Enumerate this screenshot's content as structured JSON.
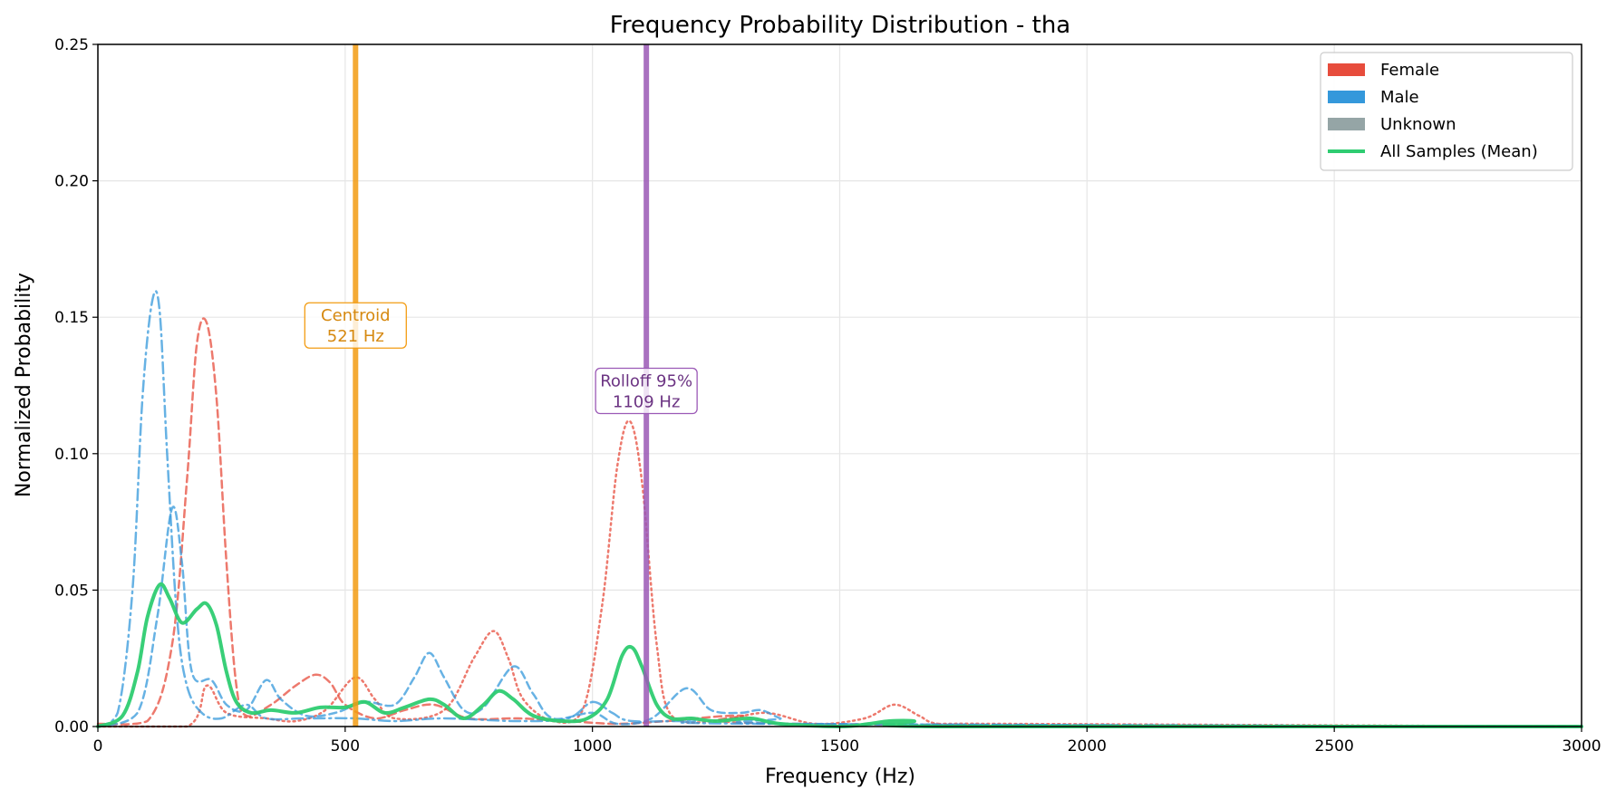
{
  "chart_data": {
    "type": "line",
    "title": "Frequency Probability Distribution - tha",
    "xlabel": "Frequency (Hz)",
    "ylabel": "Normalized Probability",
    "xlim": [
      0,
      3000
    ],
    "ylim": [
      0,
      0.25
    ],
    "xticks": [
      0,
      500,
      1000,
      1500,
      2000,
      2500,
      3000
    ],
    "xtick_labels": [
      "0",
      "500",
      "1000",
      "1500",
      "2000",
      "2500",
      "3000"
    ],
    "yticks": [
      0,
      0.05,
      0.1,
      0.15,
      0.2,
      0.25
    ],
    "ytick_labels": [
      "0.00",
      "0.05",
      "0.10",
      "0.15",
      "0.20",
      "0.25"
    ],
    "grid": true,
    "legend_position": "top-right",
    "legend": [
      {
        "label": "Female",
        "kind": "patch",
        "color": "#e74c3c"
      },
      {
        "label": "Male",
        "kind": "patch",
        "color": "#3498db"
      },
      {
        "label": "Unknown",
        "kind": "patch",
        "color": "#95a5a6"
      },
      {
        "label": "All Samples (Mean)",
        "kind": "line",
        "color": "#2ecc71"
      }
    ],
    "annotations": [
      {
        "label_lines": [
          "Centroid",
          "521 Hz"
        ],
        "x": 521,
        "label_y": 0.147,
        "color": "#f39c12",
        "text_color": "#d68910"
      },
      {
        "label_lines": [
          "Rolloff 95%",
          "1109 Hz"
        ],
        "x": 1109,
        "label_y": 0.123,
        "color": "#9b59b6",
        "text_color": "#6c3483"
      }
    ],
    "series": [
      {
        "group": "female",
        "color": "#e74c3c",
        "dash": "8,5",
        "width": 2.5,
        "points": [
          [
            0,
            0.001
          ],
          [
            100,
            0.002
          ],
          [
            150,
            0.03
          ],
          [
            180,
            0.09
          ],
          [
            200,
            0.14
          ],
          [
            220,
            0.148
          ],
          [
            240,
            0.12
          ],
          [
            260,
            0.06
          ],
          [
            280,
            0.015
          ],
          [
            300,
            0.004
          ],
          [
            350,
            0.008
          ],
          [
            400,
            0.015
          ],
          [
            440,
            0.019
          ],
          [
            470,
            0.016
          ],
          [
            500,
            0.008
          ],
          [
            560,
            0.003
          ],
          [
            620,
            0.006
          ],
          [
            680,
            0.008
          ],
          [
            750,
            0.003
          ],
          [
            850,
            0.003
          ],
          [
            950,
            0.002
          ],
          [
            1050,
            0.001
          ],
          [
            1150,
            0.002
          ],
          [
            1300,
            0.004
          ],
          [
            1400,
            0.001
          ],
          [
            3000,
            0
          ]
        ]
      },
      {
        "group": "female",
        "color": "#e74c3c",
        "dash": "2,4",
        "width": 2.5,
        "points": [
          [
            0,
            0
          ],
          [
            180,
            0
          ],
          [
            220,
            0.015
          ],
          [
            260,
            0.005
          ],
          [
            340,
            0.003
          ],
          [
            400,
            0.002
          ],
          [
            460,
            0.006
          ],
          [
            520,
            0.018
          ],
          [
            560,
            0.01
          ],
          [
            600,
            0.003
          ],
          [
            700,
            0.006
          ],
          [
            760,
            0.025
          ],
          [
            800,
            0.035
          ],
          [
            830,
            0.025
          ],
          [
            860,
            0.01
          ],
          [
            920,
            0.002
          ],
          [
            980,
            0.006
          ],
          [
            1020,
            0.045
          ],
          [
            1050,
            0.095
          ],
          [
            1075,
            0.112
          ],
          [
            1100,
            0.09
          ],
          [
            1130,
            0.03
          ],
          [
            1160,
            0.004
          ],
          [
            1250,
            0.002
          ],
          [
            1350,
            0.005
          ],
          [
            1450,
            0.001
          ],
          [
            1550,
            0.003
          ],
          [
            1610,
            0.008
          ],
          [
            1660,
            0.004
          ],
          [
            1700,
            0.001
          ],
          [
            1820,
            0.001
          ],
          [
            3000,
            0
          ]
        ]
      },
      {
        "group": "male",
        "color": "#3498db",
        "dash": "12,5,2,5",
        "width": 2.5,
        "points": [
          [
            0,
            0
          ],
          [
            40,
            0.005
          ],
          [
            70,
            0.05
          ],
          [
            90,
            0.12
          ],
          [
            110,
            0.156
          ],
          [
            125,
            0.152
          ],
          [
            140,
            0.1
          ],
          [
            160,
            0.04
          ],
          [
            180,
            0.015
          ],
          [
            210,
            0.005
          ],
          [
            250,
            0.003
          ],
          [
            300,
            0.008
          ],
          [
            340,
            0.003
          ],
          [
            420,
            0.003
          ],
          [
            520,
            0.003
          ],
          [
            600,
            0.002
          ],
          [
            700,
            0.003
          ],
          [
            850,
            0.002
          ],
          [
            950,
            0.003
          ],
          [
            1000,
            0.009
          ],
          [
            1040,
            0.005
          ],
          [
            1080,
            0.002
          ],
          [
            1200,
            0.002
          ],
          [
            1350,
            0.001
          ],
          [
            3000,
            0
          ]
        ]
      },
      {
        "group": "male",
        "color": "#3498db",
        "dash": "8,5",
        "width": 2.5,
        "points": [
          [
            0,
            0
          ],
          [
            80,
            0.005
          ],
          [
            120,
            0.04
          ],
          [
            150,
            0.08
          ],
          [
            170,
            0.06
          ],
          [
            190,
            0.02
          ],
          [
            230,
            0.017
          ],
          [
            260,
            0.008
          ],
          [
            300,
            0.006
          ],
          [
            340,
            0.017
          ],
          [
            370,
            0.01
          ],
          [
            420,
            0.004
          ],
          [
            480,
            0.005
          ],
          [
            540,
            0.009
          ],
          [
            600,
            0.008
          ],
          [
            640,
            0.018
          ],
          [
            670,
            0.027
          ],
          [
            700,
            0.018
          ],
          [
            740,
            0.006
          ],
          [
            780,
            0.007
          ],
          [
            840,
            0.022
          ],
          [
            880,
            0.012
          ],
          [
            920,
            0.003
          ],
          [
            1000,
            0.005
          ],
          [
            1050,
            0.001
          ],
          [
            1120,
            0.003
          ],
          [
            1190,
            0.014
          ],
          [
            1240,
            0.006
          ],
          [
            1300,
            0.005
          ],
          [
            1340,
            0.006
          ],
          [
            1380,
            0.003
          ],
          [
            1420,
            0.001
          ],
          [
            3000,
            0
          ]
        ]
      },
      {
        "group": "mean",
        "color": "#2ecc71",
        "dash": "",
        "width": 4,
        "points": [
          [
            0,
            0
          ],
          [
            50,
            0.004
          ],
          [
            80,
            0.02
          ],
          [
            100,
            0.04
          ],
          [
            125,
            0.052
          ],
          [
            145,
            0.047
          ],
          [
            170,
            0.038
          ],
          [
            200,
            0.043
          ],
          [
            220,
            0.045
          ],
          [
            240,
            0.037
          ],
          [
            260,
            0.02
          ],
          [
            280,
            0.009
          ],
          [
            310,
            0.005
          ],
          [
            350,
            0.006
          ],
          [
            400,
            0.005
          ],
          [
            450,
            0.007
          ],
          [
            500,
            0.007
          ],
          [
            540,
            0.009
          ],
          [
            580,
            0.005
          ],
          [
            620,
            0.007
          ],
          [
            670,
            0.01
          ],
          [
            700,
            0.008
          ],
          [
            740,
            0.003
          ],
          [
            780,
            0.008
          ],
          [
            810,
            0.013
          ],
          [
            840,
            0.01
          ],
          [
            880,
            0.004
          ],
          [
            940,
            0.002
          ],
          [
            990,
            0.003
          ],
          [
            1030,
            0.01
          ],
          [
            1060,
            0.026
          ],
          [
            1080,
            0.029
          ],
          [
            1100,
            0.022
          ],
          [
            1130,
            0.008
          ],
          [
            1160,
            0.003
          ],
          [
            1200,
            0.003
          ],
          [
            1250,
            0.002
          ],
          [
            1320,
            0.003
          ],
          [
            1380,
            0.001
          ],
          [
            1500,
            0.0
          ],
          [
            1560,
            0.001
          ],
          [
            1600,
            0.002
          ],
          [
            1650,
            0.002
          ],
          [
            1700,
            0.0
          ],
          [
            3000,
            0.0
          ]
        ]
      }
    ]
  }
}
